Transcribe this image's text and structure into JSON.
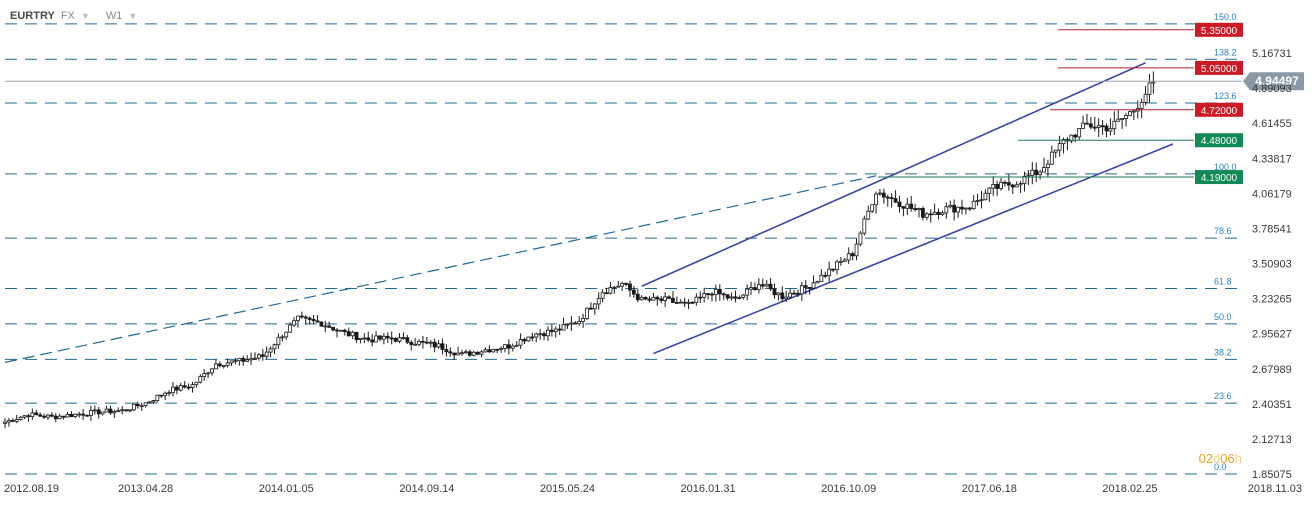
{
  "toolbar": {
    "symbol": "EURTRY",
    "market": "FX",
    "timeframe": "W1",
    "caret_icon": "caret-down-icon"
  },
  "countdown": {
    "days": "02",
    "days_unit": "d",
    "hours": "06",
    "hours_unit": "h"
  },
  "chart_data": {
    "type": "candlestick",
    "title": "",
    "xlabel": "",
    "ylabel": "",
    "ylim": [
      1.85075,
      5.38
    ],
    "xlim": [
      "2012-08-19",
      "2018-11-03"
    ],
    "x_tick_labels": [
      "2012.08.19",
      "2013.04.28",
      "2014.01.05",
      "2014.09.14",
      "2015.05.24",
      "2016.01.31",
      "2016.10.09",
      "2017.06.18",
      "2018.02.25",
      "2018.11.03"
    ],
    "y_tick_labels": [
      5.16731,
      4.89093,
      4.61455,
      4.33817,
      4.06179,
      3.78541,
      3.50903,
      3.23265,
      2.95627,
      2.67989,
      2.40351,
      2.12713,
      1.85075
    ],
    "last_price": {
      "value": 4.94497,
      "label": "4.94497"
    },
    "fibonacci": {
      "levels": [
        {
          "label": "0.0",
          "value": 1.851
        },
        {
          "label": "23.6",
          "value": 2.409
        },
        {
          "label": "38.2",
          "value": 2.754
        },
        {
          "label": "50.0",
          "value": 3.033
        },
        {
          "label": "61.8",
          "value": 3.312
        },
        {
          "label": "78.6",
          "value": 3.709
        },
        {
          "label": "100.0",
          "value": 4.215
        },
        {
          "label": "123.6",
          "value": 4.773
        },
        {
          "label": "138.2",
          "value": 5.118
        },
        {
          "label": "150.0",
          "value": 5.397
        }
      ]
    },
    "resistance": [
      {
        "label": "5.35000",
        "value": 5.35
      },
      {
        "label": "5.05000",
        "value": 5.05
      },
      {
        "label": "4.72000",
        "value": 4.72
      }
    ],
    "support": [
      {
        "label": "4.48000",
        "value": 4.48
      },
      {
        "label": "4.19000",
        "value": 4.19
      }
    ],
    "trend_channel": {
      "upper": [
        [
          "2015-10-04",
          3.33
        ],
        [
          "2018-03-25",
          5.09
        ]
      ],
      "lower": [
        [
          "2015-10-25",
          2.8
        ],
        [
          "2018-05-13",
          4.45
        ]
      ]
    },
    "long_trendline": [
      [
        "2012-08-19",
        2.73
      ],
      [
        "2016-11-27",
        4.2
      ]
    ],
    "weekly_close": [
      {
        "date": "2012-08-19",
        "close": 2.26
      },
      {
        "date": "2012-09-30",
        "close": 2.32
      },
      {
        "date": "2012-11-11",
        "close": 2.3
      },
      {
        "date": "2012-12-23",
        "close": 2.32
      },
      {
        "date": "2013-02-03",
        "close": 2.34
      },
      {
        "date": "2013-03-17",
        "close": 2.35
      },
      {
        "date": "2013-04-28",
        "close": 2.41
      },
      {
        "date": "2013-06-09",
        "close": 2.51
      },
      {
        "date": "2013-07-21",
        "close": 2.55
      },
      {
        "date": "2013-09-01",
        "close": 2.72
      },
      {
        "date": "2013-10-13",
        "close": 2.74
      },
      {
        "date": "2013-11-24",
        "close": 2.78
      },
      {
        "date": "2013-12-29",
        "close": 2.95
      },
      {
        "date": "2014-01-26",
        "close": 3.07
      },
      {
        "date": "2014-03-09",
        "close": 3.04
      },
      {
        "date": "2014-04-20",
        "close": 2.96
      },
      {
        "date": "2014-06-01",
        "close": 2.91
      },
      {
        "date": "2014-07-13",
        "close": 2.92
      },
      {
        "date": "2014-08-24",
        "close": 2.89
      },
      {
        "date": "2014-10-05",
        "close": 2.86
      },
      {
        "date": "2014-11-16",
        "close": 2.79
      },
      {
        "date": "2014-12-28",
        "close": 2.83
      },
      {
        "date": "2015-02-08",
        "close": 2.86
      },
      {
        "date": "2015-03-22",
        "close": 2.95
      },
      {
        "date": "2015-05-03",
        "close": 2.98
      },
      {
        "date": "2015-06-14",
        "close": 3.06
      },
      {
        "date": "2015-07-26",
        "close": 3.29
      },
      {
        "date": "2015-08-30",
        "close": 3.35
      },
      {
        "date": "2015-10-04",
        "close": 3.22
      },
      {
        "date": "2015-11-15",
        "close": 3.22
      },
      {
        "date": "2015-12-27",
        "close": 3.18
      },
      {
        "date": "2016-02-07",
        "close": 3.29
      },
      {
        "date": "2016-03-20",
        "close": 3.22
      },
      {
        "date": "2016-05-01",
        "close": 3.35
      },
      {
        "date": "2016-06-12",
        "close": 3.25
      },
      {
        "date": "2016-07-24",
        "close": 3.32
      },
      {
        "date": "2016-09-04",
        "close": 3.45
      },
      {
        "date": "2016-10-16",
        "close": 3.59
      },
      {
        "date": "2016-11-27",
        "close": 4.08
      },
      {
        "date": "2017-01-08",
        "close": 3.99
      },
      {
        "date": "2017-02-19",
        "close": 3.9
      },
      {
        "date": "2017-04-02",
        "close": 3.94
      },
      {
        "date": "2017-05-14",
        "close": 3.96
      },
      {
        "date": "2017-06-25",
        "close": 4.1
      },
      {
        "date": "2017-08-06",
        "close": 4.15
      },
      {
        "date": "2017-09-17",
        "close": 4.24
      },
      {
        "date": "2017-10-29",
        "close": 4.47
      },
      {
        "date": "2017-12-10",
        "close": 4.6
      },
      {
        "date": "2018-01-21",
        "close": 4.58
      },
      {
        "date": "2018-03-04",
        "close": 4.72
      },
      {
        "date": "2018-04-08",
        "close": 4.94
      }
    ]
  },
  "colors": {
    "candle": "#1a1a1a",
    "fib_line": "#1e6b95",
    "fib_label": "#2a80c0",
    "channel": "#3a46a8",
    "resistance_line": "#b81f2a",
    "resistance_label_bg": "#cc1b24",
    "support_line": "#1a7a5a",
    "support_label_bg": "#128a58",
    "price_label_bg": "#8a99a6",
    "axis_text": "#3a3a3a",
    "countdown": "#f0a020"
  }
}
